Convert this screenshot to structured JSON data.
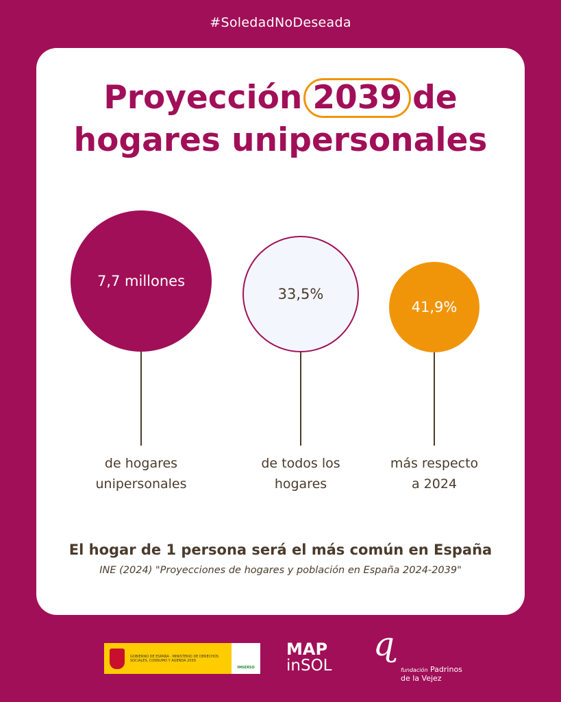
{
  "hashtag": "#SoledadNoDeseada",
  "title": {
    "before": "Proyección",
    "year": "2039",
    "after": "de",
    "line2": "hogares unipersonales"
  },
  "stats": [
    {
      "value": "7,7 millones",
      "label1": "de hogares",
      "label2": "unipersonales",
      "color": "#A10F58"
    },
    {
      "value": "33,5%",
      "label1": "de todos los",
      "label2": "hogares",
      "color": "#F4F6FE"
    },
    {
      "value": "41,9%",
      "label1": "más respecto",
      "label2": "a 2024",
      "color": "#F0950A"
    }
  ],
  "summary": {
    "part1": "El",
    "bold": "hogar de 1 persona",
    "part2": "será el más común en España"
  },
  "citation": "INE (2024) \"Proyecciones de hogares y población en España 2024-2039\"",
  "footer": {
    "gov_text": "GOBIERNO DE ESPAÑA · MINISTERIO DE DERECHOS SOCIALES, CONSUMO Y AGENDA 2030",
    "imserso": "IMSERSO",
    "mapinsol_line1": "MAP",
    "mapinsol_line2": "inSOL",
    "fundacion_prefix": "fundación",
    "fundacion_name": "Padrinos de la Vejez"
  }
}
